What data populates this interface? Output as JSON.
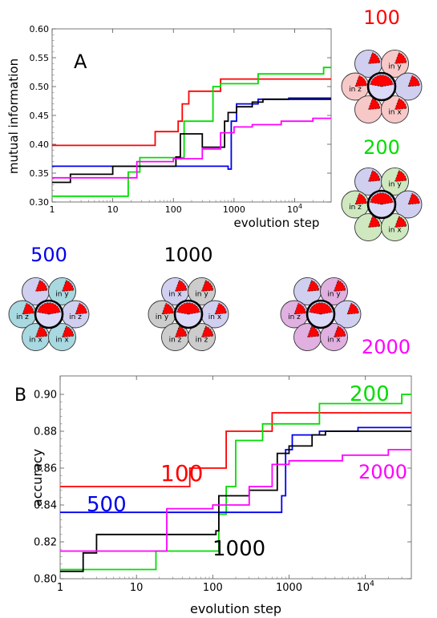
{
  "chart_data": [
    {
      "type": "line",
      "panel_label": "A",
      "xlabel": "evolution step",
      "ylabel": "mutual information",
      "x_scale": "log",
      "xlim": [
        1,
        40000
      ],
      "ylim": [
        0.3,
        0.6
      ],
      "x_ticks": [
        {
          "value": 1,
          "label": "1"
        },
        {
          "value": 10,
          "label": "10"
        },
        {
          "value": 100,
          "label": "100"
        },
        {
          "value": 1000,
          "label": "1000"
        },
        {
          "value": 10000,
          "label": "10^4"
        }
      ],
      "y_ticks": [
        {
          "value": 0.3,
          "label": "0.30"
        },
        {
          "value": 0.35,
          "label": "0.35"
        },
        {
          "value": 0.4,
          "label": "0.40"
        },
        {
          "value": 0.45,
          "label": "0.45"
        },
        {
          "value": 0.5,
          "label": "0.50"
        },
        {
          "value": 0.55,
          "label": "0.55"
        },
        {
          "value": 0.6,
          "label": "0.60"
        }
      ],
      "series": [
        {
          "name": "100",
          "color": "#ff0000",
          "steps": [
            [
              1,
              0.398
            ],
            [
              50,
              0.398
            ],
            [
              50,
              0.422
            ],
            [
              120,
              0.422
            ],
            [
              120,
              0.44
            ],
            [
              140,
              0.44
            ],
            [
              140,
              0.47
            ],
            [
              180,
              0.47
            ],
            [
              180,
              0.492
            ],
            [
              600,
              0.492
            ],
            [
              600,
              0.513
            ],
            [
              40000,
              0.513
            ]
          ]
        },
        {
          "name": "200",
          "color": "#00dd00",
          "steps": [
            [
              1,
              0.31
            ],
            [
              18,
              0.31
            ],
            [
              18,
              0.352
            ],
            [
              28,
              0.352
            ],
            [
              28,
              0.377
            ],
            [
              150,
              0.377
            ],
            [
              150,
              0.44
            ],
            [
              450,
              0.44
            ],
            [
              450,
              0.5
            ],
            [
              600,
              0.5
            ],
            [
              600,
              0.505
            ],
            [
              2500,
              0.505
            ],
            [
              2500,
              0.522
            ],
            [
              30000,
              0.522
            ],
            [
              30000,
              0.533
            ],
            [
              40000,
              0.533
            ]
          ]
        },
        {
          "name": "500",
          "color": "#0000ee",
          "steps": [
            [
              1,
              0.362
            ],
            [
              800,
              0.362
            ],
            [
              800,
              0.357
            ],
            [
              900,
              0.357
            ],
            [
              900,
              0.44
            ],
            [
              1100,
              0.44
            ],
            [
              1100,
              0.47
            ],
            [
              2500,
              0.47
            ],
            [
              2500,
              0.478
            ],
            [
              8000,
              0.478
            ],
            [
              8000,
              0.48
            ],
            [
              40000,
              0.48
            ]
          ]
        },
        {
          "name": "1000",
          "color": "#000000",
          "steps": [
            [
              1,
              0.334
            ],
            [
              2,
              0.334
            ],
            [
              2,
              0.348
            ],
            [
              10,
              0.348
            ],
            [
              10,
              0.362
            ],
            [
              110,
              0.362
            ],
            [
              110,
              0.378
            ],
            [
              130,
              0.378
            ],
            [
              130,
              0.395
            ],
            [
              130,
              0.395
            ],
            [
              130,
              0.418
            ],
            [
              300,
              0.418
            ],
            [
              300,
              0.395
            ],
            [
              700,
              0.395
            ],
            [
              700,
              0.44
            ],
            [
              800,
              0.44
            ],
            [
              800,
              0.455
            ],
            [
              1100,
              0.455
            ],
            [
              1100,
              0.465
            ],
            [
              2000,
              0.465
            ],
            [
              2000,
              0.473
            ],
            [
              3000,
              0.473
            ],
            [
              3000,
              0.478
            ],
            [
              40000,
              0.478
            ]
          ]
        },
        {
          "name": "2000",
          "color": "#ff00ff",
          "steps": [
            [
              1,
              0.342
            ],
            [
              25,
              0.342
            ],
            [
              25,
              0.37
            ],
            [
              100,
              0.37
            ],
            [
              100,
              0.375
            ],
            [
              300,
              0.375
            ],
            [
              300,
              0.392
            ],
            [
              600,
              0.392
            ],
            [
              600,
              0.42
            ],
            [
              1000,
              0.42
            ],
            [
              1000,
              0.43
            ],
            [
              2000,
              0.43
            ],
            [
              2000,
              0.434
            ],
            [
              6000,
              0.434
            ],
            [
              6000,
              0.44
            ],
            [
              20000,
              0.44
            ],
            [
              20000,
              0.445
            ],
            [
              40000,
              0.445
            ]
          ]
        }
      ]
    },
    {
      "type": "line",
      "panel_label": "B",
      "xlabel": "evolution step",
      "ylabel": "accuracy",
      "x_scale": "log",
      "xlim": [
        1,
        40000
      ],
      "ylim": [
        0.8,
        0.91
      ],
      "x_ticks": [
        {
          "value": 1,
          "label": "1"
        },
        {
          "value": 10,
          "label": "10"
        },
        {
          "value": 100,
          "label": "100"
        },
        {
          "value": 1000,
          "label": "1000"
        },
        {
          "value": 10000,
          "label": "10^4"
        }
      ],
      "y_ticks": [
        {
          "value": 0.8,
          "label": "0.80"
        },
        {
          "value": 0.82,
          "label": "0.82"
        },
        {
          "value": 0.84,
          "label": "0.84"
        },
        {
          "value": 0.86,
          "label": "0.86"
        },
        {
          "value": 0.88,
          "label": "0.88"
        },
        {
          "value": 0.9,
          "label": "0.90"
        }
      ],
      "series": [
        {
          "name": "100",
          "label": "100",
          "color": "#ff0000",
          "steps": [
            [
              1,
              0.85
            ],
            [
              50,
              0.85
            ],
            [
              50,
              0.86
            ],
            [
              150,
              0.86
            ],
            [
              150,
              0.88
            ],
            [
              600,
              0.88
            ],
            [
              600,
              0.89
            ],
            [
              40000,
              0.89
            ]
          ]
        },
        {
          "name": "200",
          "label": "200",
          "color": "#00dd00",
          "steps": [
            [
              1,
              0.805
            ],
            [
              18,
              0.805
            ],
            [
              18,
              0.815
            ],
            [
              120,
              0.815
            ],
            [
              120,
              0.835
            ],
            [
              150,
              0.835
            ],
            [
              150,
              0.85
            ],
            [
              200,
              0.85
            ],
            [
              200,
              0.875
            ],
            [
              450,
              0.875
            ],
            [
              450,
              0.884
            ],
            [
              2500,
              0.884
            ],
            [
              2500,
              0.895
            ],
            [
              30000,
              0.895
            ],
            [
              30000,
              0.9
            ],
            [
              40000,
              0.9
            ]
          ]
        },
        {
          "name": "500",
          "label": "500",
          "color": "#0000ee",
          "steps": [
            [
              1,
              0.836
            ],
            [
              800,
              0.836
            ],
            [
              800,
              0.845
            ],
            [
              900,
              0.845
            ],
            [
              900,
              0.87
            ],
            [
              1100,
              0.87
            ],
            [
              1100,
              0.878
            ],
            [
              2500,
              0.878
            ],
            [
              2500,
              0.88
            ],
            [
              8000,
              0.88
            ],
            [
              8000,
              0.882
            ],
            [
              40000,
              0.882
            ]
          ]
        },
        {
          "name": "1000",
          "label": "1000",
          "color": "#000000",
          "steps": [
            [
              1,
              0.804
            ],
            [
              2,
              0.804
            ],
            [
              2,
              0.814
            ],
            [
              3,
              0.814
            ],
            [
              3,
              0.824
            ],
            [
              110,
              0.824
            ],
            [
              110,
              0.826
            ],
            [
              120,
              0.826
            ],
            [
              120,
              0.845
            ],
            [
              300,
              0.845
            ],
            [
              300,
              0.848
            ],
            [
              700,
              0.848
            ],
            [
              700,
              0.868
            ],
            [
              1000,
              0.868
            ],
            [
              1000,
              0.872
            ],
            [
              2000,
              0.872
            ],
            [
              2000,
              0.878
            ],
            [
              3000,
              0.878
            ],
            [
              3000,
              0.88
            ],
            [
              40000,
              0.88
            ]
          ]
        },
        {
          "name": "2000",
          "label": "2000",
          "color": "#ff00ff",
          "steps": [
            [
              1,
              0.815
            ],
            [
              25,
              0.815
            ],
            [
              25,
              0.838
            ],
            [
              100,
              0.838
            ],
            [
              100,
              0.84
            ],
            [
              300,
              0.84
            ],
            [
              300,
              0.85
            ],
            [
              600,
              0.85
            ],
            [
              600,
              0.862
            ],
            [
              1000,
              0.862
            ],
            [
              1000,
              0.864
            ],
            [
              5000,
              0.864
            ],
            [
              5000,
              0.867
            ],
            [
              20000,
              0.867
            ],
            [
              20000,
              0.87
            ],
            [
              40000,
              0.87
            ]
          ]
        }
      ]
    }
  ],
  "networks": [
    {
      "id": "100",
      "title": "100",
      "color": "#ff0000",
      "fill": "#f7c8c8",
      "labels": [
        "in y",
        "in z",
        "in x"
      ]
    },
    {
      "id": "200",
      "title": "200",
      "color": "#00dd00",
      "fill": "#cfe8c0",
      "labels": [
        "in y",
        "in z",
        "in x"
      ]
    },
    {
      "id": "500",
      "title": "500",
      "color": "#0000ee",
      "fill": "#a8d8e0",
      "labels": [
        "in y",
        "in z",
        "in x",
        "in z",
        "in x"
      ]
    },
    {
      "id": "1000",
      "title": "1000",
      "color": "#000000",
      "fill": "#cccccc",
      "labels": [
        "in y",
        "in y",
        "in z",
        "in x",
        "in z",
        "in x"
      ]
    },
    {
      "id": "2000",
      "title": "2000",
      "color": "#ff00ff",
      "fill": "#e0b0e0",
      "labels": [
        "in y",
        "in z",
        "in x"
      ]
    }
  ],
  "superscript": "4"
}
